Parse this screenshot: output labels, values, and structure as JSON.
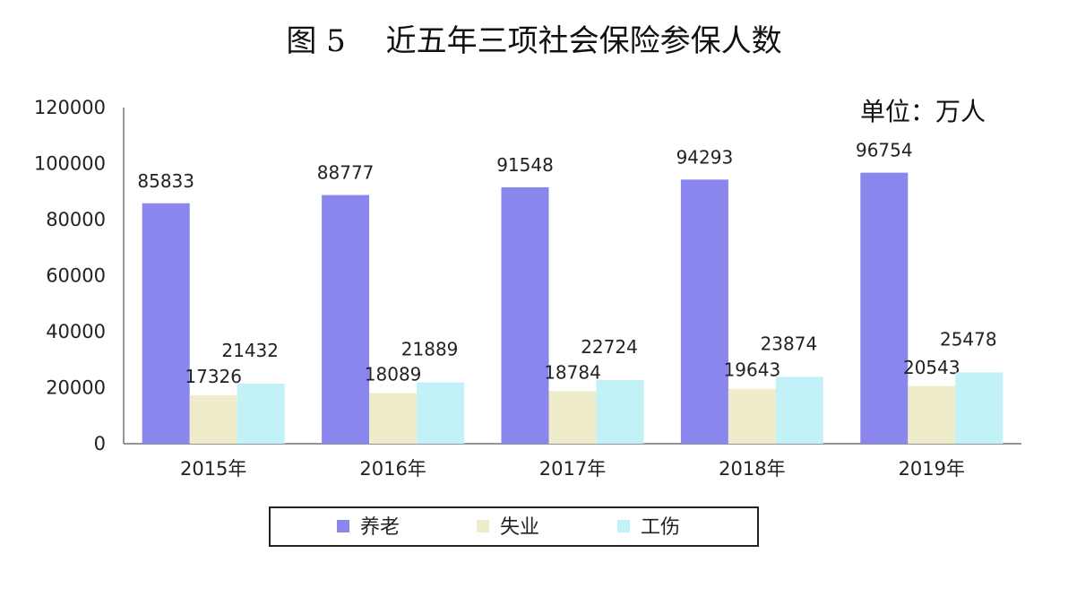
{
  "chart_data": {
    "type": "bar",
    "title": "图 5　 近五年三项社会保险参保人数",
    "unit_label": "单位：万人",
    "categories": [
      "2015年",
      "2016年",
      "2017年",
      "2018年",
      "2019年"
    ],
    "series": [
      {
        "name": "养老",
        "color": "#8b86ee",
        "values": [
          85833,
          88777,
          91548,
          94293,
          96754
        ]
      },
      {
        "name": "失业",
        "color": "#efeccb",
        "values": [
          17326,
          18089,
          18784,
          19643,
          20543
        ]
      },
      {
        "name": "工伤",
        "color": "#c2f1f7",
        "values": [
          21432,
          21889,
          22724,
          23874,
          25478
        ]
      }
    ],
    "ylim": [
      0,
      120000
    ],
    "yticks": [
      0,
      20000,
      40000,
      60000,
      80000,
      100000,
      120000
    ],
    "grid": false,
    "legend_position": "bottom"
  }
}
